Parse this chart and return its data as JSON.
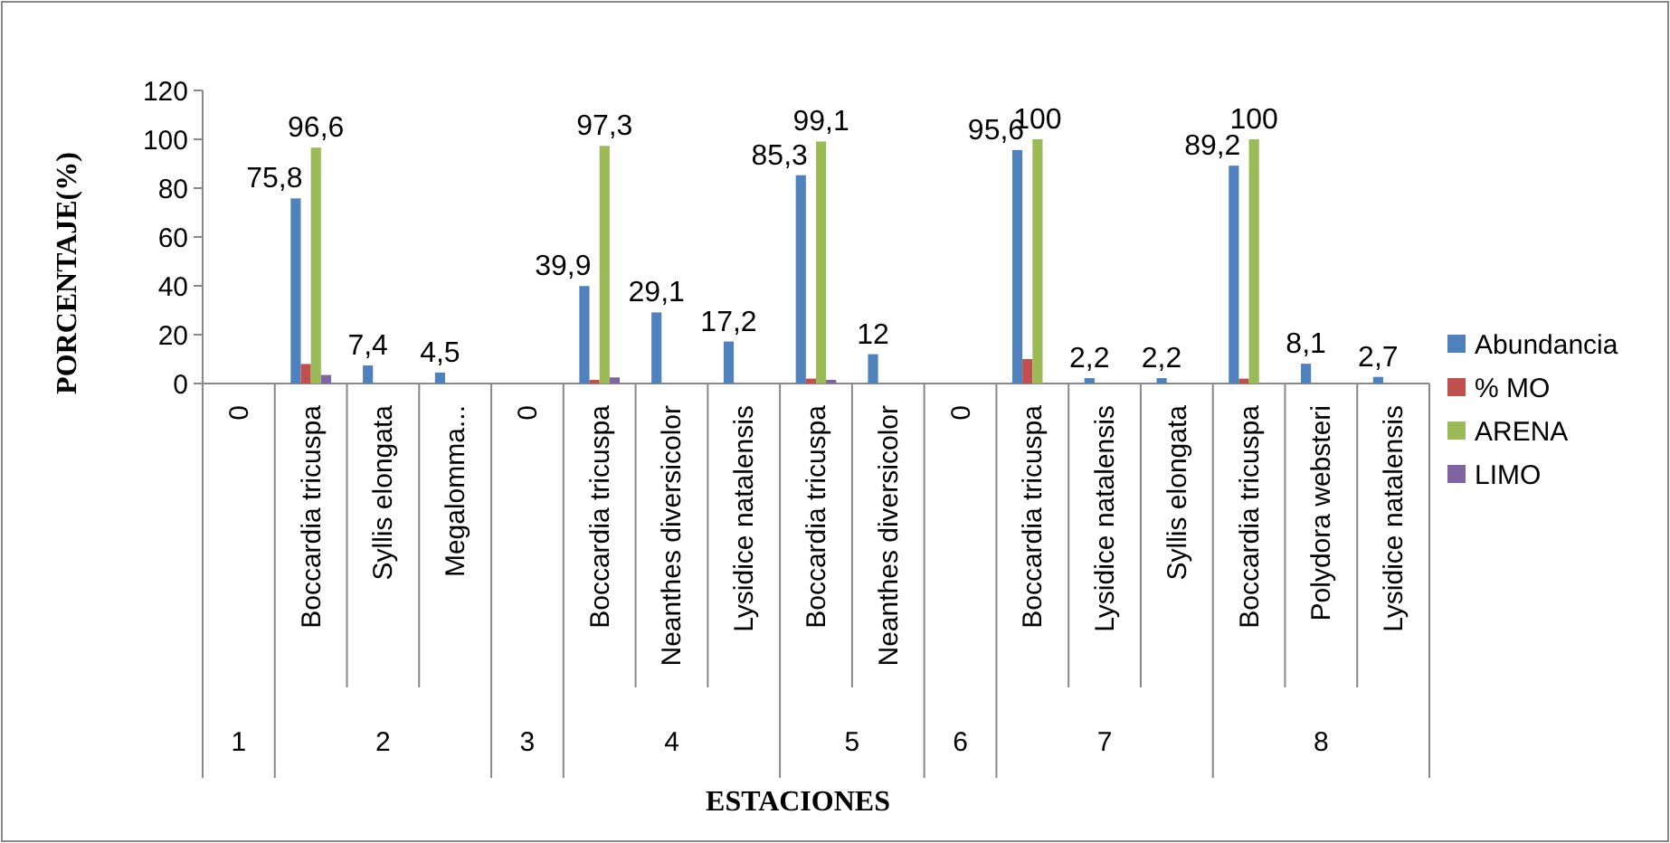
{
  "chart_data": {
    "type": "bar",
    "xlabel": "ESTACIONES",
    "ylabel": "PORCENTAJE(%)",
    "categories": [
      "0",
      "Boccardia tricuspa",
      "Syllis elongata",
      "Megalomma...",
      "0",
      "Boccardia tricuspa",
      "Neanthes diversicolor",
      "Lysidice natalensis",
      "Boccardia tricuspa",
      "Neanthes diversicolor",
      "0",
      "Boccardia tricuspa",
      "Lysidice natalensis",
      "Syllis elongata",
      "Boccardia tricuspa",
      "Polydora websteri",
      "Lysidice natalensis"
    ],
    "annotations": [
      "1",
      "2",
      "3",
      "4",
      "5",
      "6",
      "7",
      "8"
    ],
    "series": [
      {
        "name": "Abundancia",
        "color": "#4f81bd",
        "values": [
          null,
          75.8,
          7.4,
          4.5,
          null,
          39.9,
          29.1,
          17.2,
          85.3,
          12,
          null,
          95.6,
          2.2,
          2.2,
          89.2,
          8.1,
          2.7
        ],
        "value_labels": [
          null,
          "75,8",
          "7,4",
          "4,5",
          null,
          "39,9",
          "29,1",
          "17,2",
          "85,3",
          "12",
          null,
          "95,6",
          "2,2",
          "2,2",
          "89,2",
          "8,1",
          "2,7"
        ]
      },
      {
        "name": "% MO",
        "color": "#c0504d",
        "values": [
          null,
          8,
          null,
          null,
          null,
          1.5,
          null,
          null,
          2,
          null,
          null,
          10,
          null,
          null,
          2,
          null,
          null
        ]
      },
      {
        "name": "ARENA",
        "color": "#9bbb59",
        "values": [
          null,
          96.6,
          null,
          null,
          null,
          97.3,
          null,
          null,
          99.1,
          null,
          null,
          100,
          null,
          null,
          100,
          null,
          null
        ],
        "value_labels": [
          null,
          "96,6",
          null,
          null,
          null,
          "97,3",
          null,
          null,
          "99,1",
          null,
          null,
          "100",
          null,
          null,
          "100",
          null,
          null
        ]
      },
      {
        "name": "LIMO",
        "color": "#8064a2",
        "values": [
          null,
          3.5,
          null,
          null,
          null,
          2.5,
          null,
          null,
          1.5,
          null,
          null,
          null,
          null,
          null,
          null,
          null,
          null
        ]
      }
    ],
    "ylim": [
      0,
      120
    ],
    "yticks": [
      0,
      20,
      40,
      60,
      80,
      100,
      120
    ],
    "legend": "right"
  }
}
